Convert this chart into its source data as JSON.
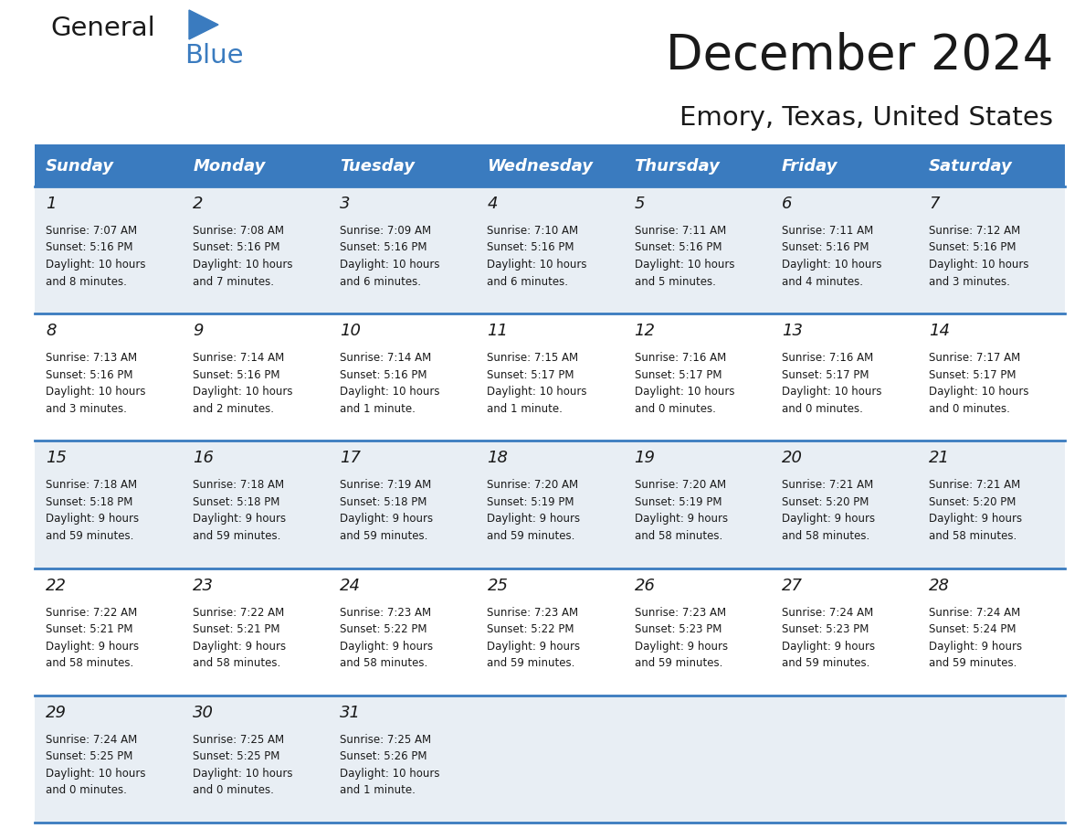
{
  "title": "December 2024",
  "subtitle": "Emory, Texas, United States",
  "header_color": "#3a7bbf",
  "header_text_color": "#ffffff",
  "cell_bg_even": "#e8eef4",
  "cell_bg_odd": "#ffffff",
  "border_color": "#3a7bbf",
  "days_of_week": [
    "Sunday",
    "Monday",
    "Tuesday",
    "Wednesday",
    "Thursday",
    "Friday",
    "Saturday"
  ],
  "calendar_data": [
    [
      {
        "day": 1,
        "sunrise": "7:07 AM",
        "sunset": "5:16 PM",
        "daylight_hours": 10,
        "daylight_minutes": 8
      },
      {
        "day": 2,
        "sunrise": "7:08 AM",
        "sunset": "5:16 PM",
        "daylight_hours": 10,
        "daylight_minutes": 7
      },
      {
        "day": 3,
        "sunrise": "7:09 AM",
        "sunset": "5:16 PM",
        "daylight_hours": 10,
        "daylight_minutes": 6
      },
      {
        "day": 4,
        "sunrise": "7:10 AM",
        "sunset": "5:16 PM",
        "daylight_hours": 10,
        "daylight_minutes": 6
      },
      {
        "day": 5,
        "sunrise": "7:11 AM",
        "sunset": "5:16 PM",
        "daylight_hours": 10,
        "daylight_minutes": 5
      },
      {
        "day": 6,
        "sunrise": "7:11 AM",
        "sunset": "5:16 PM",
        "daylight_hours": 10,
        "daylight_minutes": 4
      },
      {
        "day": 7,
        "sunrise": "7:12 AM",
        "sunset": "5:16 PM",
        "daylight_hours": 10,
        "daylight_minutes": 3
      }
    ],
    [
      {
        "day": 8,
        "sunrise": "7:13 AM",
        "sunset": "5:16 PM",
        "daylight_hours": 10,
        "daylight_minutes": 3
      },
      {
        "day": 9,
        "sunrise": "7:14 AM",
        "sunset": "5:16 PM",
        "daylight_hours": 10,
        "daylight_minutes": 2
      },
      {
        "day": 10,
        "sunrise": "7:14 AM",
        "sunset": "5:16 PM",
        "daylight_hours": 10,
        "daylight_minutes": 1
      },
      {
        "day": 11,
        "sunrise": "7:15 AM",
        "sunset": "5:17 PM",
        "daylight_hours": 10,
        "daylight_minutes": 1
      },
      {
        "day": 12,
        "sunrise": "7:16 AM",
        "sunset": "5:17 PM",
        "daylight_hours": 10,
        "daylight_minutes": 0
      },
      {
        "day": 13,
        "sunrise": "7:16 AM",
        "sunset": "5:17 PM",
        "daylight_hours": 10,
        "daylight_minutes": 0
      },
      {
        "day": 14,
        "sunrise": "7:17 AM",
        "sunset": "5:17 PM",
        "daylight_hours": 10,
        "daylight_minutes": 0
      }
    ],
    [
      {
        "day": 15,
        "sunrise": "7:18 AM",
        "sunset": "5:18 PM",
        "daylight_hours": 9,
        "daylight_minutes": 59
      },
      {
        "day": 16,
        "sunrise": "7:18 AM",
        "sunset": "5:18 PM",
        "daylight_hours": 9,
        "daylight_minutes": 59
      },
      {
        "day": 17,
        "sunrise": "7:19 AM",
        "sunset": "5:18 PM",
        "daylight_hours": 9,
        "daylight_minutes": 59
      },
      {
        "day": 18,
        "sunrise": "7:20 AM",
        "sunset": "5:19 PM",
        "daylight_hours": 9,
        "daylight_minutes": 59
      },
      {
        "day": 19,
        "sunrise": "7:20 AM",
        "sunset": "5:19 PM",
        "daylight_hours": 9,
        "daylight_minutes": 58
      },
      {
        "day": 20,
        "sunrise": "7:21 AM",
        "sunset": "5:20 PM",
        "daylight_hours": 9,
        "daylight_minutes": 58
      },
      {
        "day": 21,
        "sunrise": "7:21 AM",
        "sunset": "5:20 PM",
        "daylight_hours": 9,
        "daylight_minutes": 58
      }
    ],
    [
      {
        "day": 22,
        "sunrise": "7:22 AM",
        "sunset": "5:21 PM",
        "daylight_hours": 9,
        "daylight_minutes": 58
      },
      {
        "day": 23,
        "sunrise": "7:22 AM",
        "sunset": "5:21 PM",
        "daylight_hours": 9,
        "daylight_minutes": 58
      },
      {
        "day": 24,
        "sunrise": "7:23 AM",
        "sunset": "5:22 PM",
        "daylight_hours": 9,
        "daylight_minutes": 58
      },
      {
        "day": 25,
        "sunrise": "7:23 AM",
        "sunset": "5:22 PM",
        "daylight_hours": 9,
        "daylight_minutes": 59
      },
      {
        "day": 26,
        "sunrise": "7:23 AM",
        "sunset": "5:23 PM",
        "daylight_hours": 9,
        "daylight_minutes": 59
      },
      {
        "day": 27,
        "sunrise": "7:24 AM",
        "sunset": "5:23 PM",
        "daylight_hours": 9,
        "daylight_minutes": 59
      },
      {
        "day": 28,
        "sunrise": "7:24 AM",
        "sunset": "5:24 PM",
        "daylight_hours": 9,
        "daylight_minutes": 59
      }
    ],
    [
      {
        "day": 29,
        "sunrise": "7:24 AM",
        "sunset": "5:25 PM",
        "daylight_hours": 10,
        "daylight_minutes": 0
      },
      {
        "day": 30,
        "sunrise": "7:25 AM",
        "sunset": "5:25 PM",
        "daylight_hours": 10,
        "daylight_minutes": 0
      },
      {
        "day": 31,
        "sunrise": "7:25 AM",
        "sunset": "5:26 PM",
        "daylight_hours": 10,
        "daylight_minutes": 1
      },
      null,
      null,
      null,
      null
    ]
  ],
  "text_color_dark": "#1a1a1a",
  "title_fontsize": 38,
  "subtitle_fontsize": 21,
  "header_fontsize": 13,
  "day_number_fontsize": 13,
  "cell_text_fontsize": 8.5
}
